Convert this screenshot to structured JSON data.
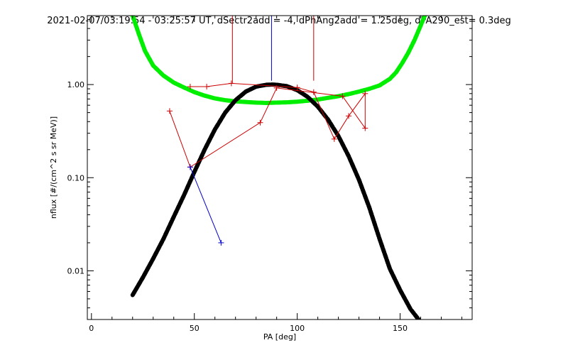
{
  "chart_data": {
    "type": "line",
    "title": "2021-02-07/03:19:54 - 03:25:57 UT, dSectr2add = -4, dPhAng2add = 1.25deg, dPA290_est=   0.3deg",
    "xlabel": "PA [deg]",
    "ylabel": "nflux [#/(cm^2 s sr MeV)]",
    "x_range": [
      -2,
      185
    ],
    "y_range": [
      0.003,
      5.5
    ],
    "y_scale": "log",
    "grid": false,
    "x_ticks": [
      {
        "value": 0,
        "label": "0"
      },
      {
        "value": 50,
        "label": "50"
      },
      {
        "value": 100,
        "label": "100"
      },
      {
        "value": 150,
        "label": "150"
      }
    ],
    "y_ticks": [
      {
        "value": 0.01,
        "label": "0.01"
      },
      {
        "value": 0.1,
        "label": "0.10"
      },
      {
        "value": 1,
        "label": "1.00"
      }
    ],
    "colors": {
      "green_curve": "#00ee00",
      "black_curve": "#000000",
      "red_data": "#cc0000",
      "blue_data": "#0000cc"
    },
    "green_curve": {
      "x": [
        20,
        23,
        26,
        30,
        35,
        40,
        45,
        50,
        55,
        60,
        65,
        70,
        75,
        80,
        85,
        90,
        95,
        100,
        105,
        110,
        115,
        120,
        125,
        130,
        135,
        140,
        145,
        148,
        151,
        154,
        157,
        160,
        162
      ],
      "y": [
        5.5,
        3.5,
        2.3,
        1.6,
        1.25,
        1.05,
        0.93,
        0.83,
        0.76,
        0.71,
        0.68,
        0.66,
        0.65,
        0.64,
        0.635,
        0.64,
        0.645,
        0.655,
        0.67,
        0.69,
        0.72,
        0.75,
        0.79,
        0.84,
        0.9,
        0.98,
        1.15,
        1.35,
        1.7,
        2.2,
        3.0,
        4.3,
        5.5
      ]
    },
    "black_curve": {
      "x": [
        20,
        25,
        30,
        35,
        40,
        45,
        50,
        55,
        60,
        65,
        70,
        75,
        80,
        85,
        88,
        90,
        95,
        100,
        105,
        110,
        115,
        120,
        125,
        130,
        135,
        140,
        145,
        150,
        155,
        159
      ],
      "y": [
        0.0055,
        0.0085,
        0.0135,
        0.022,
        0.038,
        0.065,
        0.115,
        0.2,
        0.33,
        0.5,
        0.68,
        0.84,
        0.95,
        0.995,
        1.0,
        0.995,
        0.96,
        0.87,
        0.74,
        0.58,
        0.42,
        0.28,
        0.17,
        0.095,
        0.048,
        0.022,
        0.0105,
        0.0062,
        0.0039,
        0.003
      ]
    },
    "series": [
      {
        "color": "red",
        "x": [
          48,
          56,
          68,
          100,
          108,
          118,
          125,
          133,
          133,
          122,
          90,
          82,
          48,
          38
        ],
        "y": [
          0.95,
          0.95,
          1.03,
          0.93,
          0.83,
          0.26,
          0.46,
          0.8,
          0.34,
          0.75,
          0.92,
          0.39,
          0.13,
          0.52
        ]
      },
      {
        "color": "blue",
        "x": [
          48,
          63
        ],
        "y": [
          0.13,
          0.02
        ]
      }
    ],
    "vertical_markers": [
      {
        "x": 68.5,
        "y_from": 1.03,
        "y_to": 5.5,
        "color": "red"
      },
      {
        "x": 87.5,
        "y_from": 1.1,
        "y_to": 5.5,
        "color": "blue"
      },
      {
        "x": 108,
        "y_from": 1.1,
        "y_to": 5.5,
        "color": "red"
      }
    ]
  }
}
